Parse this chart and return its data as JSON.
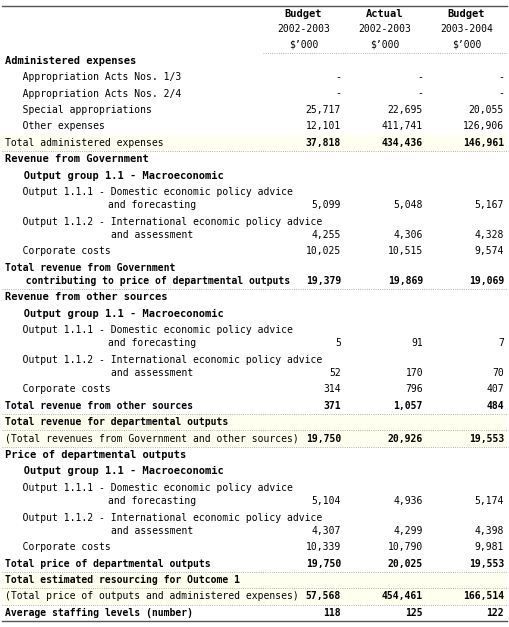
{
  "headers": [
    {
      "text": "Budget",
      "sub1": "2002-2003",
      "sub2": "$’000"
    },
    {
      "text": "Actual",
      "sub1": "2002-2003",
      "sub2": "$’000"
    },
    {
      "text": "Budget",
      "sub1": "2003-2004",
      "sub2": "$’000"
    }
  ],
  "rows": [
    {
      "label": "Administered expenses",
      "label2": null,
      "type": "section_header",
      "values": [
        "",
        "",
        ""
      ]
    },
    {
      "label": "   Appropriation Acts Nos. 1/3",
      "label2": null,
      "type": "data",
      "values": [
        "-",
        "-",
        "-"
      ]
    },
    {
      "label": "   Appropriation Acts Nos. 2/4",
      "label2": null,
      "type": "data",
      "values": [
        "-",
        "-",
        "-"
      ]
    },
    {
      "label": "   Special appropriations",
      "label2": null,
      "type": "data",
      "values": [
        "25,717",
        "22,695",
        "20,055"
      ]
    },
    {
      "label": "   Other expenses",
      "label2": null,
      "type": "data",
      "values": [
        "12,101",
        "411,741",
        "126,906"
      ]
    },
    {
      "label": "Total administered expenses",
      "label2": null,
      "type": "total_yellow",
      "values": [
        "37,818",
        "434,436",
        "146,961"
      ]
    },
    {
      "label": "Revenue from Government",
      "label2": null,
      "type": "section_header",
      "values": [
        "",
        "",
        ""
      ]
    },
    {
      "label": "   Output group 1.1 - Macroeconomic",
      "label2": null,
      "type": "subsection_header",
      "values": [
        "",
        "",
        ""
      ]
    },
    {
      "label": "   Output 1.1.1 - Domestic economic policy advice",
      "label2": "and forecasting",
      "type": "data2",
      "values": [
        "5,099",
        "5,048",
        "5,167"
      ]
    },
    {
      "label": "   Output 1.1.2 - International economic policy advice",
      "label2": "and assessment",
      "type": "data2",
      "values": [
        "4,255",
        "4,306",
        "4,328"
      ]
    },
    {
      "label": "   Corporate costs",
      "label2": null,
      "type": "data",
      "values": [
        "10,025",
        "10,515",
        "9,574"
      ]
    },
    {
      "label": "Total revenue from Government",
      "label2": "  contributing to price of departmental outputs",
      "type": "total_bold2",
      "values": [
        "19,379",
        "19,869",
        "19,069"
      ]
    },
    {
      "label": "Revenue from other sources",
      "label2": null,
      "type": "section_header",
      "values": [
        "",
        "",
        ""
      ]
    },
    {
      "label": "   Output group 1.1 - Macroeconomic",
      "label2": null,
      "type": "subsection_header",
      "values": [
        "",
        "",
        ""
      ]
    },
    {
      "label": "   Output 1.1.1 - Domestic economic policy advice",
      "label2": "and forecasting",
      "type": "data2",
      "values": [
        "5",
        "91",
        "7"
      ]
    },
    {
      "label": "   Output 1.1.2 - International economic policy advice",
      "label2": "and assessment",
      "type": "data2",
      "values": [
        "52",
        "170",
        "70"
      ]
    },
    {
      "label": "   Corporate costs",
      "label2": null,
      "type": "data",
      "values": [
        "314",
        "796",
        "407"
      ]
    },
    {
      "label": "Total revenue from other sources",
      "label2": null,
      "type": "total_bold",
      "values": [
        "371",
        "1,057",
        "484"
      ]
    },
    {
      "label": "Total revenue for departmental outputs",
      "label2": null,
      "type": "total_yellow_bold",
      "values": [
        "",
        "",
        ""
      ]
    },
    {
      "label": "(Total revenues from Government and other sources)",
      "label2": null,
      "type": "total_yellow",
      "values": [
        "19,750",
        "20,926",
        "19,553"
      ]
    },
    {
      "label": "Price of departmental outputs",
      "label2": null,
      "type": "section_header",
      "values": [
        "",
        "",
        ""
      ]
    },
    {
      "label": "   Output group 1.1 - Macroeconomic",
      "label2": null,
      "type": "subsection_header",
      "values": [
        "",
        "",
        ""
      ]
    },
    {
      "label": "   Output 1.1.1 - Domestic economic policy advice",
      "label2": "and forecasting",
      "type": "data2",
      "values": [
        "5,104",
        "4,936",
        "5,174"
      ]
    },
    {
      "label": "   Output 1.1.2 - International economic policy advice",
      "label2": "and assessment",
      "type": "data2",
      "values": [
        "4,307",
        "4,299",
        "4,398"
      ]
    },
    {
      "label": "   Corporate costs",
      "label2": null,
      "type": "data",
      "values": [
        "10,339",
        "10,790",
        "9,981"
      ]
    },
    {
      "label": "Total price of departmental outputs",
      "label2": null,
      "type": "total_bold",
      "values": [
        "19,750",
        "20,025",
        "19,553"
      ]
    },
    {
      "label": "Total estimated resourcing for Outcome 1",
      "label2": null,
      "type": "total_yellow_bold",
      "values": [
        "",
        "",
        ""
      ]
    },
    {
      "label": "(Total price of outputs and administered expenses)",
      "label2": null,
      "type": "total_yellow",
      "values": [
        "57,568",
        "454,461",
        "166,514"
      ]
    },
    {
      "label": "Average staffing levels (number)",
      "label2": null,
      "type": "total_bold",
      "values": [
        "118",
        "125",
        "122"
      ]
    }
  ],
  "bg_white": "#ffffff",
  "bg_yellow": "#fffff0",
  "text_color": "#000000",
  "col_split": 0.515
}
